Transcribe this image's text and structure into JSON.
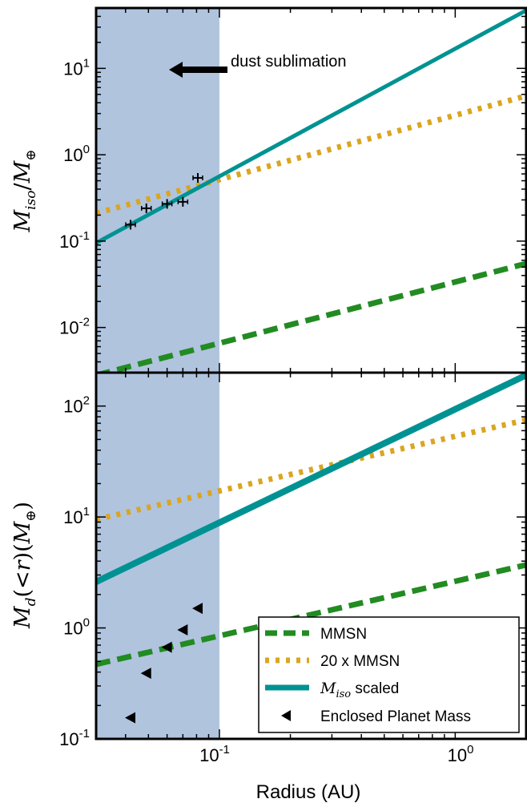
{
  "figure": {
    "xlabel": "Radius (AU)",
    "x_ticks": [
      {
        "base": "10",
        "exp": "-1"
      },
      {
        "base": "10",
        "exp": "0"
      }
    ]
  },
  "chart_data": [
    {
      "type": "line",
      "panel": "top",
      "ylabel": "M_iso / M_⊕",
      "xlim": [
        0.03,
        2.0
      ],
      "ylim": [
        0.003,
        50
      ],
      "xscale": "log",
      "yscale": "log",
      "y_ticks": [
        {
          "base": "10",
          "exp": "-2",
          "value": 0.01
        },
        {
          "base": "10",
          "exp": "-1",
          "value": 0.1
        },
        {
          "base": "10",
          "exp": "0",
          "value": 1
        },
        {
          "base": "10",
          "exp": "1",
          "value": 10
        }
      ],
      "shaded_region": {
        "x_from": 0.03,
        "x_to": 0.1,
        "color": "#b0c4de"
      },
      "annotation": {
        "text": "dust sublimation",
        "arrow_direction": "left",
        "x": 0.065,
        "y": 10
      },
      "series": [
        {
          "style": "dashed",
          "color": "#228b22",
          "x": [
            0.03,
            2.0
          ],
          "y": [
            0.0028,
            0.055
          ]
        },
        {
          "style": "dotted",
          "color": "#daa520",
          "x": [
            0.03,
            2.0
          ],
          "y": [
            0.21,
            4.8
          ]
        },
        {
          "style": "solid",
          "color": "#009292",
          "x": [
            0.03,
            2.0
          ],
          "y": [
            0.095,
            47.0
          ]
        }
      ],
      "points": {
        "marker": "+",
        "with_errorbars": true,
        "x": [
          0.042,
          0.049,
          0.06,
          0.07,
          0.081
        ],
        "y": [
          0.155,
          0.24,
          0.27,
          0.285,
          0.54
        ]
      }
    },
    {
      "type": "line",
      "panel": "bottom",
      "ylabel": "M_d(<r)(M_⊕)",
      "xlim": [
        0.03,
        2.0
      ],
      "ylim": [
        0.1,
        200
      ],
      "xscale": "log",
      "yscale": "log",
      "y_ticks": [
        {
          "base": "10",
          "exp": "-1",
          "value": 0.1
        },
        {
          "base": "10",
          "exp": "0",
          "value": 1
        },
        {
          "base": "10",
          "exp": "1",
          "value": 10
        },
        {
          "base": "10",
          "exp": "2",
          "value": 100
        }
      ],
      "shaded_region": {
        "x_from": 0.03,
        "x_to": 0.1,
        "color": "#b0c4de"
      },
      "series": [
        {
          "name": "MMSN",
          "style": "dashed",
          "color": "#228b22",
          "x": [
            0.03,
            2.0
          ],
          "y": [
            0.47,
            3.7
          ]
        },
        {
          "name": "20 x MMSN",
          "style": "dotted",
          "color": "#daa520",
          "x": [
            0.03,
            2.0
          ],
          "y": [
            9.5,
            75.0
          ]
        },
        {
          "name": "M_iso scaled",
          "style": "solid",
          "color": "#009292",
          "x": [
            0.03,
            2.0
          ],
          "y": [
            2.6,
            190.0
          ]
        }
      ],
      "points": {
        "name": "Enclosed Planet Mass",
        "marker": "triangle-left",
        "x": [
          0.042,
          0.049,
          0.06,
          0.07,
          0.081
        ],
        "y": [
          0.155,
          0.39,
          0.67,
          0.96,
          1.5
        ]
      },
      "legend": {
        "placement": "lower-right",
        "entries": [
          {
            "text": "MMSN"
          },
          {
            "text": "20 x MMSN"
          },
          {
            "math": "M",
            "sub": "iso",
            "text": " scaled"
          },
          {
            "text": "Enclosed Planet Mass"
          }
        ]
      }
    }
  ]
}
